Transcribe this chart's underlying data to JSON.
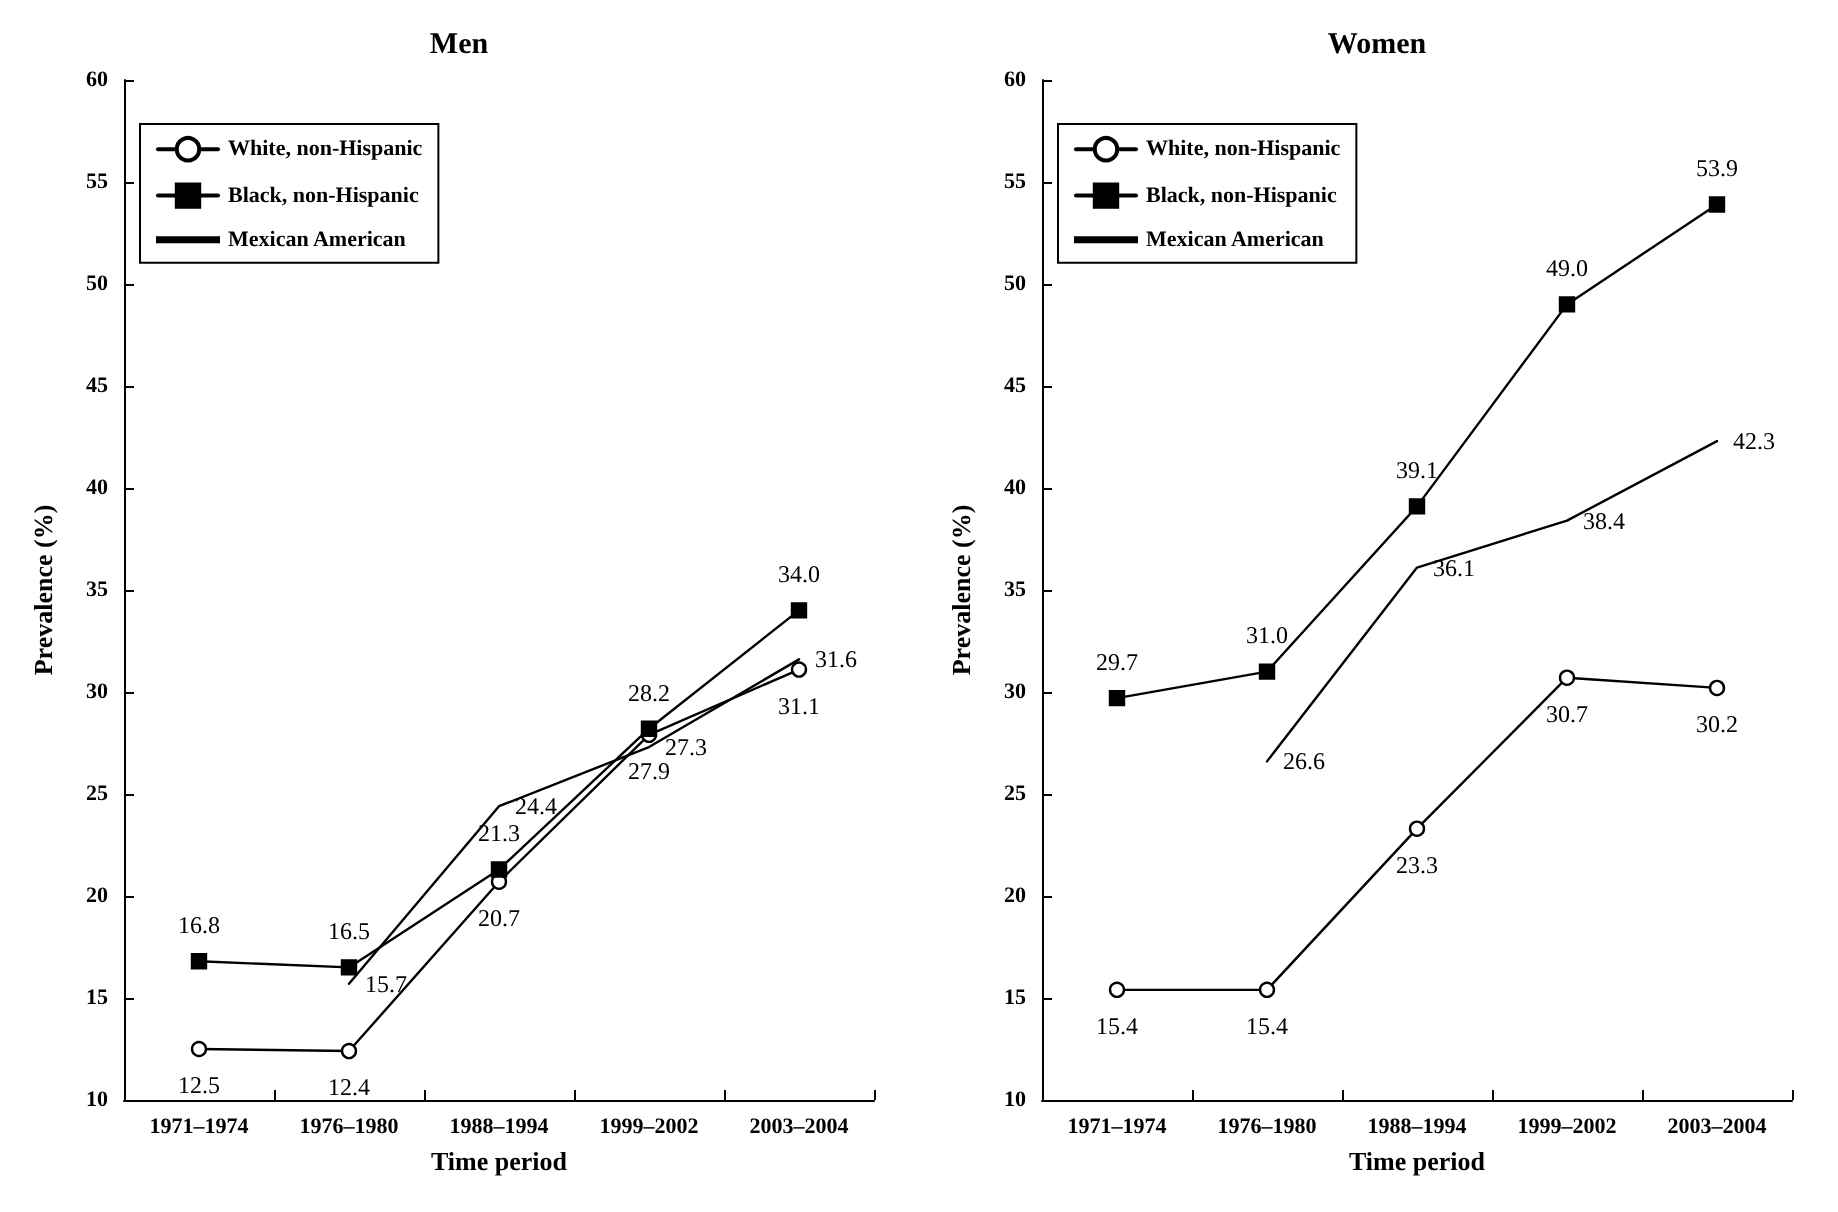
{
  "chart_data": [
    {
      "type": "line",
      "title": "Men",
      "xlabel": "Time period",
      "ylabel": "Prevalence (%)",
      "categories": [
        "1971–1974",
        "1976–1980",
        "1988–1994",
        "1999–2002",
        "2003–2004"
      ],
      "ylim": [
        10,
        60
      ],
      "yticks": [
        10,
        15,
        20,
        25,
        30,
        35,
        40,
        45,
        50,
        55,
        60
      ],
      "grid": false,
      "legend": "top left",
      "line_style": "solid",
      "series": [
        {
          "name": "White, non-Hispanic",
          "color": "#000000",
          "marker": "circle",
          "values": [
            12.5,
            12.4,
            20.7,
            27.9,
            31.1
          ],
          "value_labels": [
            "12.5",
            "12.4",
            "20.7",
            "27.9",
            "31.1"
          ]
        },
        {
          "name": "Black, non-Hispanic",
          "color": "#000000",
          "marker": "square",
          "values": [
            16.8,
            16.5,
            21.3,
            28.2,
            34
          ],
          "value_labels": [
            "16.8",
            "16.5",
            "21.3",
            "28.2",
            "34.0"
          ]
        },
        {
          "name": "Mexican American",
          "color": "#000000",
          "marker": "none",
          "values": [
            null,
            15.7,
            24.4,
            27.3,
            31.6
          ],
          "value_labels": [
            null,
            "15.7",
            "24.4",
            "27.3",
            "31.6"
          ]
        }
      ]
    },
    {
      "type": "line",
      "title": "Women",
      "xlabel": "Time period",
      "ylabel": "Prevalence (%)",
      "categories": [
        "1971–1974",
        "1976–1980",
        "1988–1994",
        "1999–2002",
        "2003–2004"
      ],
      "ylim": [
        10,
        60
      ],
      "yticks": [
        10,
        15,
        20,
        25,
        30,
        35,
        40,
        45,
        50,
        55,
        60
      ],
      "grid": false,
      "legend": "top left",
      "line_style": "solid",
      "series": [
        {
          "name": "White, non-Hispanic",
          "color": "#000000",
          "marker": "circle",
          "values": [
            15.4,
            15.4,
            23.3,
            30.7,
            30.2
          ],
          "value_labels": [
            "15.4",
            "15.4",
            "23.3",
            "30.7",
            "30.2"
          ]
        },
        {
          "name": "Black, non-Hispanic",
          "color": "#000000",
          "marker": "square",
          "values": [
            29.7,
            31,
            39.1,
            49,
            53.9
          ],
          "value_labels": [
            "29.7",
            "31.0",
            "39.1",
            "49.0",
            "53.9"
          ]
        },
        {
          "name": "Mexican American",
          "color": "#000000",
          "marker": "none",
          "values": [
            null,
            26.6,
            36.1,
            38.4,
            42.3
          ],
          "value_labels": [
            null,
            "26.6",
            "36.1",
            "38.4",
            "42.3"
          ]
        }
      ]
    }
  ]
}
